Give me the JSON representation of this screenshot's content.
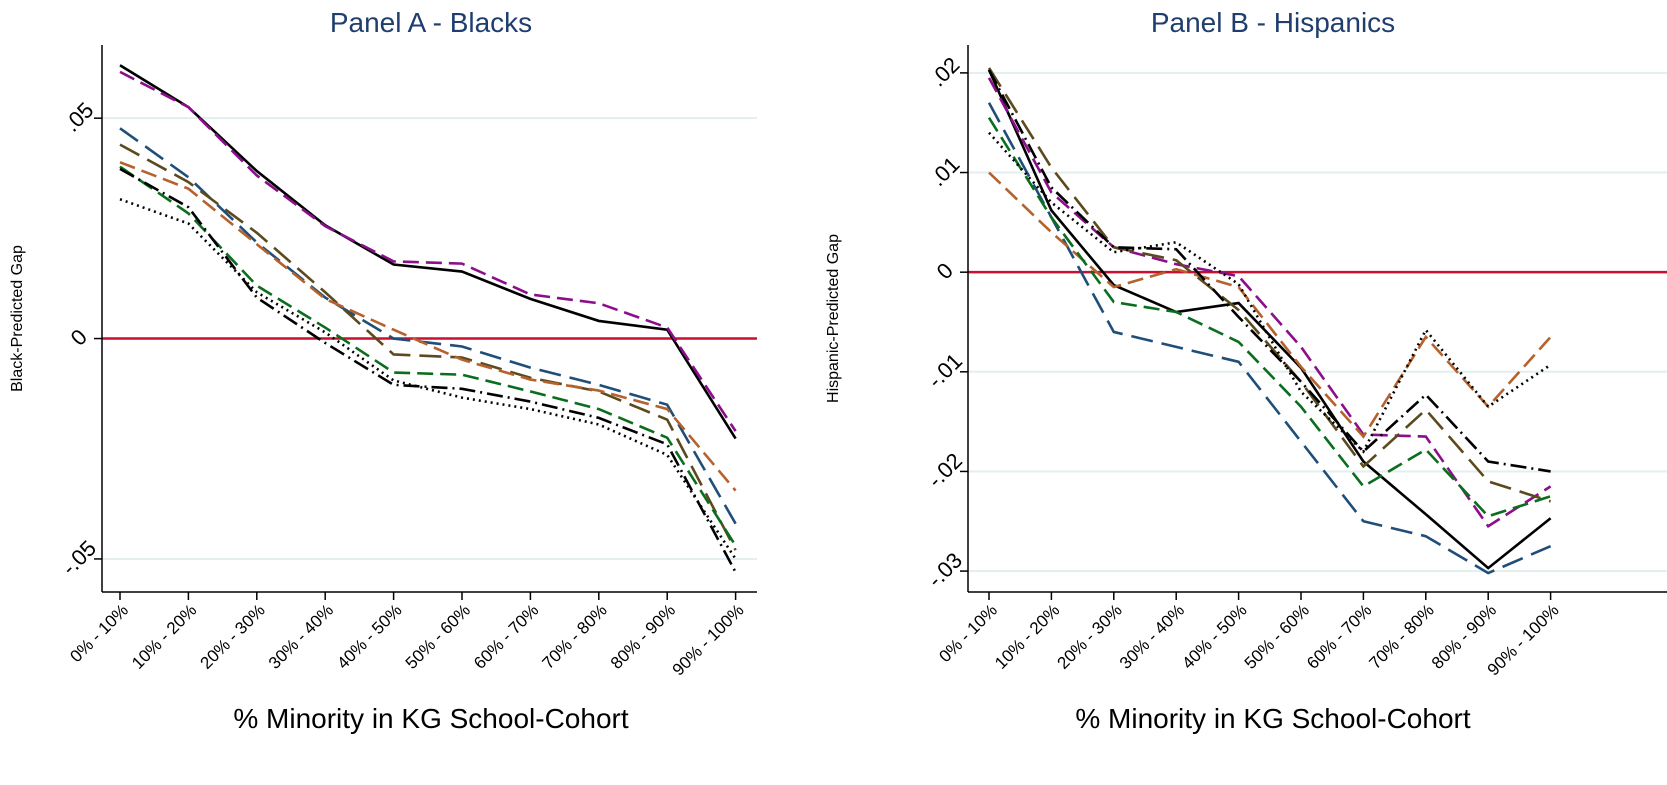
{
  "chart_data": [
    {
      "type": "line",
      "title": "Panel A - Blacks",
      "x_label": "% Minority in KG School-Cohort",
      "y_label": "Black-Predicted Gap",
      "categories": [
        "0% - 10%",
        "10% - 20%",
        "20% - 30%",
        "30% - 40%",
        "40% - 50%",
        "50% - 60%",
        "60% - 70%",
        "70% - 80%",
        "80% - 90%",
        "90% - 100%"
      ],
      "ylim": [
        -0.0575,
        0.0666
      ],
      "yticks": [
        {
          "value": -0.05,
          "label": "-.05"
        },
        0,
        {
          "value": 0.05,
          "label": ".05"
        }
      ],
      "grid": true,
      "refline": {
        "value": 0,
        "color": "#c8102e"
      },
      "series": [
        {
          "color": "#000000",
          "dash": "solid",
          "values": [
            0.062,
            0.0525,
            0.038,
            0.0257,
            0.0168,
            0.0152,
            0.009,
            0.004,
            0.002,
            -0.0227
          ]
        },
        {
          "color": "#8b0f8b",
          "dash": "dash",
          "values": [
            0.0605,
            0.0525,
            0.037,
            0.0255,
            0.0175,
            0.017,
            0.01,
            0.008,
            0.0025,
            -0.021
          ]
        },
        {
          "color": "#1f4e79",
          "dash": "longdash",
          "values": [
            0.0477,
            0.0366,
            0.0218,
            0.0093,
            0,
            -0.0018,
            -0.0066,
            -0.0105,
            -0.015,
            -0.042
          ]
        },
        {
          "color": "#5c4a1e",
          "dash": "longdash",
          "values": [
            0.044,
            0.0355,
            0.024,
            0.0105,
            -0.0036,
            -0.0043,
            -0.0089,
            -0.012,
            -0.0184,
            -0.048
          ]
        },
        {
          "color": "#b5622e",
          "dash": "dash",
          "values": [
            0.04,
            0.034,
            0.0214,
            0.009,
            0.002,
            -0.0048,
            -0.0093,
            -0.0118,
            -0.016,
            -0.0345
          ]
        },
        {
          "color": "#0a6e1e",
          "dash": "dash",
          "values": [
            0.039,
            0.0284,
            0.012,
            0.0025,
            -0.0077,
            -0.0082,
            -0.012,
            -0.016,
            -0.0225,
            -0.047
          ]
        },
        {
          "color": "#000000",
          "dash": "dashdot",
          "values": [
            0.0385,
            0.0298,
            0.0093,
            -0.001,
            -0.0105,
            -0.0114,
            -0.0143,
            -0.018,
            -0.024,
            -0.053
          ]
        },
        {
          "color": "#000000",
          "dash": "dot",
          "values": [
            0.0316,
            0.0261,
            0.0105,
            0.0014,
            -0.0095,
            -0.0134,
            -0.016,
            -0.0195,
            -0.0264,
            -0.05
          ]
        }
      ]
    },
    {
      "type": "line",
      "title": "Panel B - Hispanics",
      "x_label": "% Minority in KG School-Cohort",
      "y_label": "Hispanic-Predicted Gap",
      "categories": [
        "0% - 10%",
        "10% - 20%",
        "20% - 30%",
        "30% - 40%",
        "40% - 50%",
        "50% - 60%",
        "60% - 70%",
        "70% - 80%",
        "80% - 90%",
        "90% - 100%"
      ],
      "ylim": [
        -0.0321,
        0.0228
      ],
      "yticks": [
        {
          "value": -0.03,
          "label": "-.03"
        },
        {
          "value": -0.02,
          "label": "-.02"
        },
        {
          "value": -0.01,
          "label": "-.01"
        },
        0,
        {
          "value": 0.01,
          "label": ".01"
        },
        {
          "value": 0.02,
          "label": ".02"
        }
      ],
      "grid": true,
      "refline": {
        "value": 0,
        "color": "#c8102e"
      },
      "series": [
        {
          "color": "#000000",
          "dash": "solid",
          "values": [
            0.0203,
            0.0062,
            -0.0013,
            -0.004,
            -0.0031,
            -0.0096,
            -0.019,
            -0.0243,
            -0.0297,
            -0.0247
          ]
        },
        {
          "color": "#8b0f8b",
          "dash": "dash",
          "values": [
            0.0195,
            0.008,
            0.0025,
            0.0008,
            -0.0004,
            -0.0075,
            -0.0163,
            -0.0165,
            -0.0255,
            -0.0215
          ]
        },
        {
          "color": "#1f4e79",
          "dash": "longdash",
          "values": [
            0.017,
            0.0055,
            -0.006,
            -0.0075,
            -0.009,
            -0.017,
            -0.025,
            -0.0265,
            -0.0302,
            -0.0275
          ]
        },
        {
          "color": "#5c4a1e",
          "dash": "longdash",
          "values": [
            0.0205,
            0.0105,
            0.0025,
            0.0012,
            -0.0038,
            -0.011,
            -0.0195,
            -0.0138,
            -0.021,
            -0.023
          ]
        },
        {
          "color": "#b5622e",
          "dash": "dash",
          "values": [
            0.01,
            0.004,
            -0.0015,
            0.0003,
            -0.0015,
            -0.0095,
            -0.0165,
            -0.0065,
            -0.0135,
            -0.0065
          ]
        },
        {
          "color": "#0a6e1e",
          "dash": "dash",
          "values": [
            0.0155,
            0.0055,
            -0.003,
            -0.004,
            -0.007,
            -0.0135,
            -0.0215,
            -0.0178,
            -0.0245,
            -0.0225
          ]
        },
        {
          "color": "#000000",
          "dash": "dashdot",
          "values": [
            0.0203,
            0.0085,
            0.0025,
            0.0023,
            -0.0045,
            -0.011,
            -0.018,
            -0.0123,
            -0.019,
            -0.02
          ]
        },
        {
          "color": "#000000",
          "dash": "dot",
          "values": [
            0.014,
            0.007,
            0.002,
            0.003,
            -0.0012,
            -0.012,
            -0.018,
            -0.0058,
            -0.0135,
            -0.0093
          ]
        }
      ]
    }
  ]
}
